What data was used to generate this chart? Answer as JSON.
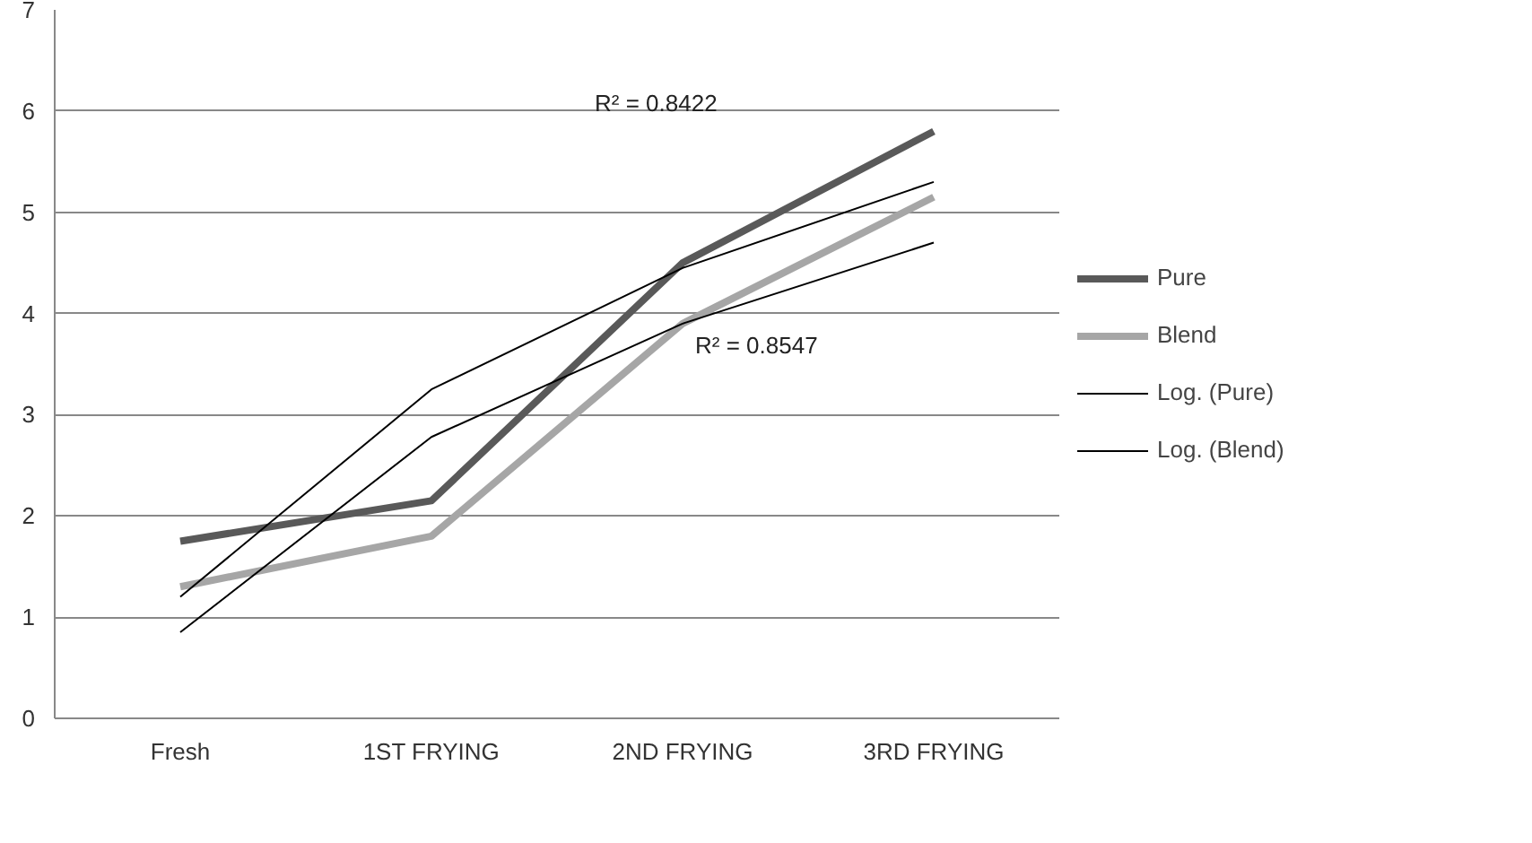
{
  "chart_data": {
    "type": "line",
    "categories": [
      "Fresh",
      "1ST FRYING",
      "2ND FRYING",
      "3RD FRYING"
    ],
    "series": [
      {
        "name": "Pure",
        "color": "#595959",
        "values": [
          1.75,
          2.15,
          4.5,
          5.8
        ]
      },
      {
        "name": "Blend",
        "color": "#a6a6a6",
        "values": [
          1.3,
          1.8,
          3.9,
          5.15
        ]
      },
      {
        "name": "Log. (Pure)",
        "color": "#000000",
        "values": [
          1.2,
          3.25,
          4.45,
          5.3
        ]
      },
      {
        "name": "Log. (Blend)",
        "color": "#000000",
        "values": [
          0.85,
          2.78,
          3.9,
          4.7
        ]
      }
    ],
    "annotations": [
      "R² = 0.8422",
      "R² = 0.8547"
    ],
    "ylim": [
      0,
      7
    ],
    "yticks": [
      0,
      1,
      2,
      3,
      4,
      5,
      6,
      7
    ],
    "grid": "y",
    "legend": "right"
  }
}
